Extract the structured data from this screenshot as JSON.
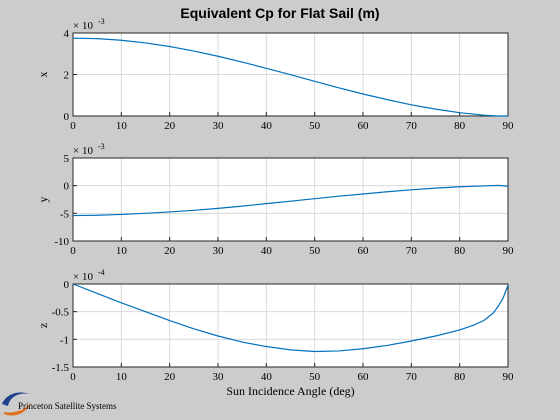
{
  "figure": {
    "title": "Equivalent Cp for Flat Sail (m)",
    "background": "#cccccc",
    "line_color": "#0072bd",
    "grid_color": "#d9d9d9"
  },
  "logo": {
    "text": "Princeton Satellite Systems",
    "icon": "pss-swoosh-icon"
  },
  "chart_data": [
    {
      "type": "line",
      "title": "Equivalent Cp for Flat Sail (m)",
      "xlabel": "",
      "ylabel": "x",
      "y_multiplier": "× 10",
      "y_exponent": "-3",
      "xlim": [
        0,
        90
      ],
      "ylim": [
        0,
        4
      ],
      "xticks": [
        "0",
        "10",
        "20",
        "30",
        "40",
        "50",
        "60",
        "70",
        "80",
        "90"
      ],
      "yticks": [
        "0",
        "2",
        "4"
      ],
      "grid": true,
      "x": [
        0,
        5,
        10,
        15,
        20,
        25,
        30,
        35,
        40,
        45,
        50,
        55,
        60,
        65,
        70,
        75,
        80,
        85,
        88,
        90
      ],
      "values": [
        3.75,
        3.73,
        3.65,
        3.52,
        3.35,
        3.13,
        2.88,
        2.6,
        2.3,
        1.99,
        1.67,
        1.36,
        1.06,
        0.79,
        0.54,
        0.33,
        0.16,
        0.04,
        0.0,
        0.0
      ]
    },
    {
      "type": "line",
      "xlabel": "",
      "ylabel": "y",
      "y_multiplier": "× 10",
      "y_exponent": "-3",
      "xlim": [
        0,
        90
      ],
      "ylim": [
        -10,
        5
      ],
      "xticks": [
        "0",
        "10",
        "20",
        "30",
        "40",
        "50",
        "60",
        "70",
        "80",
        "90"
      ],
      "yticks": [
        "-10",
        "-5",
        "0",
        "5"
      ],
      "grid": true,
      "x": [
        0,
        5,
        10,
        15,
        20,
        25,
        30,
        35,
        40,
        45,
        50,
        55,
        60,
        65,
        70,
        75,
        80,
        85,
        88,
        90
      ],
      "values": [
        -5.4,
        -5.35,
        -5.2,
        -5.0,
        -4.75,
        -4.45,
        -4.1,
        -3.7,
        -3.25,
        -2.8,
        -2.35,
        -1.9,
        -1.5,
        -1.1,
        -0.75,
        -0.45,
        -0.2,
        -0.05,
        0.05,
        -0.1
      ]
    },
    {
      "type": "line",
      "xlabel": "Sun Incidence Angle (deg)",
      "ylabel": "z",
      "y_multiplier": "× 10",
      "y_exponent": "-4",
      "xlim": [
        0,
        90
      ],
      "ylim": [
        -1.5,
        0
      ],
      "xticks": [
        "0",
        "10",
        "20",
        "30",
        "40",
        "50",
        "60",
        "70",
        "80",
        "90"
      ],
      "yticks": [
        "-1.5",
        "-1",
        "-0.5",
        "0"
      ],
      "grid": true,
      "x": [
        0,
        5,
        10,
        15,
        20,
        25,
        30,
        35,
        40,
        45,
        50,
        55,
        60,
        65,
        70,
        75,
        80,
        83,
        85,
        87,
        88,
        89,
        90
      ],
      "values": [
        0,
        -0.17,
        -0.34,
        -0.5,
        -0.66,
        -0.81,
        -0.94,
        -1.05,
        -1.13,
        -1.19,
        -1.22,
        -1.21,
        -1.17,
        -1.11,
        -1.03,
        -0.94,
        -0.83,
        -0.74,
        -0.66,
        -0.52,
        -0.4,
        -0.25,
        -0.02
      ]
    }
  ]
}
